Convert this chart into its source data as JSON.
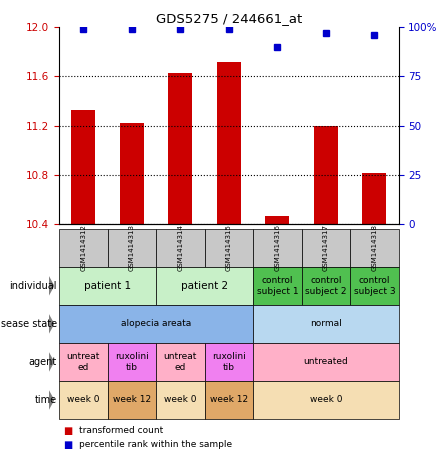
{
  "title": "GDS5275 / 244661_at",
  "samples": [
    "GSM1414312",
    "GSM1414313",
    "GSM1414314",
    "GSM1414315",
    "GSM1414316",
    "GSM1414317",
    "GSM1414318"
  ],
  "red_values": [
    11.33,
    11.22,
    11.63,
    11.72,
    10.47,
    11.2,
    10.82
  ],
  "blue_values": [
    99,
    99,
    99,
    99,
    90,
    97,
    96
  ],
  "ylim_left": [
    10.4,
    12.0
  ],
  "ylim_right": [
    0,
    100
  ],
  "yticks_left": [
    10.4,
    10.8,
    11.2,
    11.6,
    12.0
  ],
  "yticks_right": [
    0,
    25,
    50,
    75,
    100
  ],
  "ytick_labels_right": [
    "0",
    "25",
    "50",
    "75",
    "100%"
  ],
  "individual_data": [
    {
      "label": "patient 1",
      "span": [
        0,
        1
      ],
      "color": "#C8F0C8"
    },
    {
      "label": "patient 2",
      "span": [
        2,
        3
      ],
      "color": "#C8F0C8"
    },
    {
      "label": "control\nsubject 1",
      "span": [
        4,
        4
      ],
      "color": "#50C050"
    },
    {
      "label": "control\nsubject 2",
      "span": [
        5,
        5
      ],
      "color": "#50C050"
    },
    {
      "label": "control\nsubject 3",
      "span": [
        6,
        6
      ],
      "color": "#50C050"
    }
  ],
  "disease_data": [
    {
      "label": "alopecia areata",
      "span": [
        0,
        3
      ],
      "color": "#8AB4E8"
    },
    {
      "label": "normal",
      "span": [
        4,
        6
      ],
      "color": "#B8D8F0"
    }
  ],
  "agent_data": [
    {
      "label": "untreat\ned",
      "span": [
        0,
        0
      ],
      "color": "#FFB0C8"
    },
    {
      "label": "ruxolini\ntib",
      "span": [
        1,
        1
      ],
      "color": "#F080F0"
    },
    {
      "label": "untreat\ned",
      "span": [
        2,
        2
      ],
      "color": "#FFB0C8"
    },
    {
      "label": "ruxolini\ntib",
      "span": [
        3,
        3
      ],
      "color": "#F080F0"
    },
    {
      "label": "untreated",
      "span": [
        4,
        6
      ],
      "color": "#FFB0C8"
    }
  ],
  "time_data": [
    {
      "label": "week 0",
      "span": [
        0,
        0
      ],
      "color": "#F5DEB3"
    },
    {
      "label": "week 12",
      "span": [
        1,
        1
      ],
      "color": "#E0A868"
    },
    {
      "label": "week 0",
      "span": [
        2,
        2
      ],
      "color": "#F5DEB3"
    },
    {
      "label": "week 12",
      "span": [
        3,
        3
      ],
      "color": "#E0A868"
    },
    {
      "label": "week 0",
      "span": [
        4,
        6
      ],
      "color": "#F5DEB3"
    }
  ],
  "bar_color": "#CC0000",
  "dot_color": "#0000CC",
  "tick_color_left": "#CC0000",
  "tick_color_right": "#0000CC",
  "sample_bg_color": "#C8C8C8"
}
